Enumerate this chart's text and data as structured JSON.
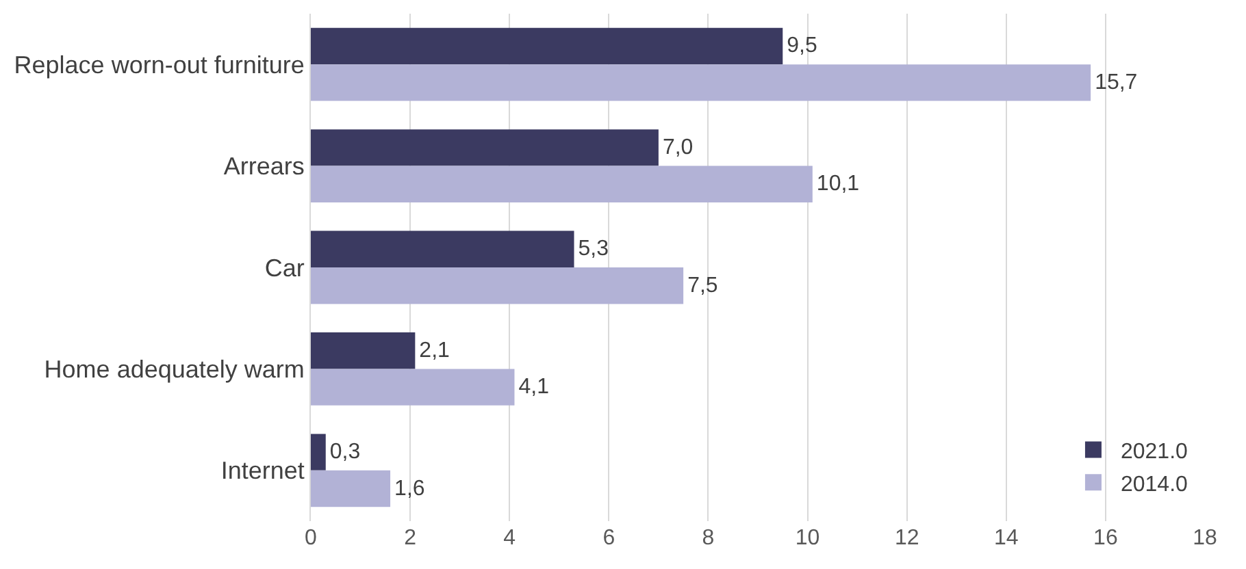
{
  "chart_data": {
    "type": "bar",
    "orientation": "horizontal",
    "categories": [
      "Replace worn-out furniture",
      "Arrears",
      "Car",
      "Home adequately warm",
      "Internet"
    ],
    "series": [
      {
        "name": "2021.0",
        "color": "#3b3a61",
        "values": [
          9.5,
          7.0,
          5.3,
          2.1,
          0.3
        ],
        "value_labels": [
          "9,5",
          "7,0",
          "5,3",
          "2,1",
          "0,3"
        ]
      },
      {
        "name": "2014.0",
        "color": "#b2b2d6",
        "values": [
          15.7,
          10.1,
          7.5,
          4.1,
          1.6
        ],
        "value_labels": [
          "15,7",
          "10,1",
          "7,5",
          "4,1",
          "1,6"
        ]
      }
    ],
    "xlim": [
      0,
      18
    ],
    "xticks": [
      0,
      2,
      4,
      6,
      8,
      10,
      12,
      14,
      16,
      18
    ],
    "grid": "x",
    "legend": "bottom right"
  }
}
